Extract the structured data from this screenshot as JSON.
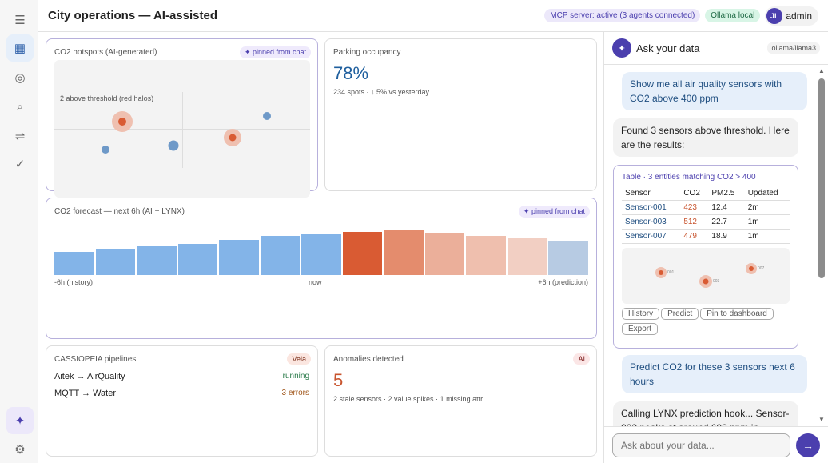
{
  "sidebar": {
    "icons": [
      "menu-icon",
      "dashboard-icon",
      "entities-icon",
      "search-icon",
      "pipelines-icon",
      "check-icon",
      "ai-assistant-icon",
      "settings-icon"
    ]
  },
  "header": {
    "title": "City operations — AI-assisted",
    "mcp_status": "MCP server: active (3 agents connected)",
    "ollama": "Ollama local",
    "user_initials": "JL",
    "user_name": "admin"
  },
  "hotspots": {
    "title": "CO2 hotspots (AI-generated)",
    "badge": "✦ pinned from chat",
    "annotation": "2 above threshold (red halos)"
  },
  "parking": {
    "title": "Parking occupancy",
    "value": "78%",
    "sub": "234 spots · ↓ 5% vs yesterday"
  },
  "forecast": {
    "title": "CO2 forecast — next 6h (AI + LYNX)",
    "badge": "✦ pinned from chat",
    "left_label": "-6h (history)",
    "mid_label": "now",
    "right_label": "+6h (prediction)",
    "relative_levels": [
      52,
      59,
      64,
      70,
      79,
      88,
      91,
      96,
      100,
      93,
      88,
      82,
      75
    ],
    "colors": [
      "#83b4e8",
      "#83b4e8",
      "#83b4e8",
      "#83b4e8",
      "#83b4e8",
      "#83b4e8",
      "#83b4e8",
      "#d95b33",
      "#e48c6d",
      "#ebaf9a",
      "#efbfae",
      "#f2cfc3",
      "#b7cbe3"
    ]
  },
  "pipelines": {
    "title": "CASSIOPEIA pipelines",
    "badge": "Vela",
    "rows": [
      {
        "name": "Aitek → AirQuality",
        "status": "running",
        "color": "#2a7a4a"
      },
      {
        "name": "MQTT → Water",
        "status": "3 errors",
        "color": "#a0561a"
      }
    ]
  },
  "anomalies": {
    "title": "Anomalies detected",
    "badge": "AI",
    "value": "5",
    "sub": "2 stale sensors · 2 value spikes · 1 missing attr"
  },
  "chat": {
    "title": "Ask your data",
    "model": "ollama/llama3",
    "msg1": "Show me all air quality sensors with CO2 above 400 ppm",
    "msg2": "Found 3 sensors above threshold. Here are the results:",
    "table_title": "Table · 3 entities matching CO2 > 400",
    "columns": [
      "Sensor",
      "CO2",
      "PM2.5",
      "Updated"
    ],
    "rows": [
      [
        "Sensor-001",
        "423",
        "12.4",
        "2m"
      ],
      [
        "Sensor-003",
        "512",
        "22.7",
        "1m"
      ],
      [
        "Sensor-007",
        "479",
        "18.9",
        "1m"
      ]
    ],
    "map_labels": [
      "001",
      "003",
      "007"
    ],
    "actions": [
      "History",
      "Predict",
      "Pin to dashboard",
      "Export"
    ],
    "msg3": "Predict CO2 for these 3 sensors next 6 hours",
    "msg4": "Calling LYNX prediction hook... Sensor-003 peaks at around 600 ppm in",
    "input_placeholder": "Ask about your data...",
    "send_icon": "arrow-right-icon"
  },
  "colors": {
    "accent": "#4b3fae",
    "blue": "#83b4e8",
    "red": "#d95b33"
  }
}
